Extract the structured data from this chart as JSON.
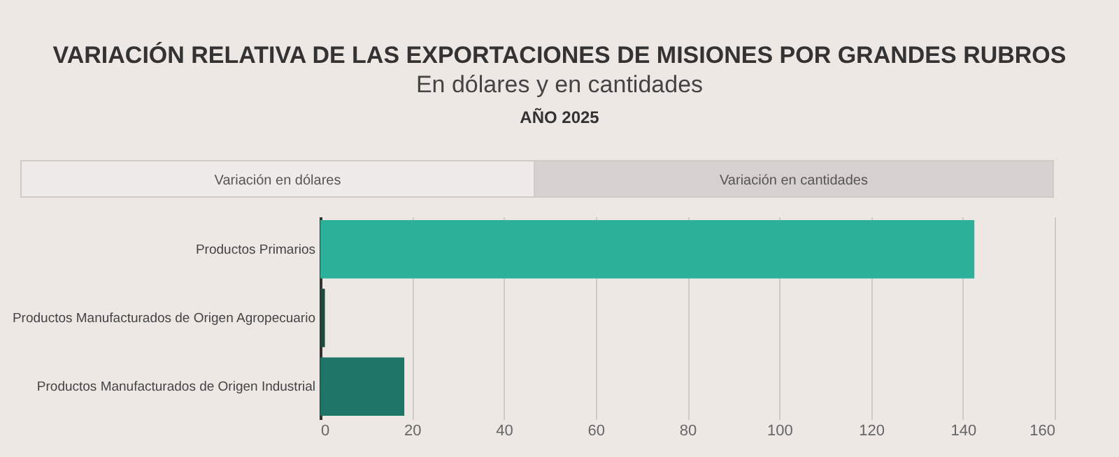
{
  "chart_data": {
    "type": "bar",
    "orientation": "horizontal",
    "title": "VARIACIÓN RELATIVA DE LAS EXPORTACIONES DE MISIONES POR GRANDES RUBROS",
    "subtitle": "En dólares y en cantidades",
    "annotations": [
      "AÑO 2025",
      "Variación en dólares",
      "Variación en cantidades"
    ],
    "categories": [
      "Productos Primarios",
      "Productos Manufacturados de Origen Agropecuario",
      "Productos Manufacturados de Origen Industrial"
    ],
    "values": [
      142.5,
      1.0,
      18.3
    ],
    "colors": [
      "#2bb09a",
      "#1e4a3f",
      "#1f7565"
    ],
    "xlim": [
      0,
      160
    ],
    "xticks": [
      0,
      20,
      40,
      60,
      80,
      100,
      120,
      140,
      160
    ],
    "grid": "x"
  }
}
